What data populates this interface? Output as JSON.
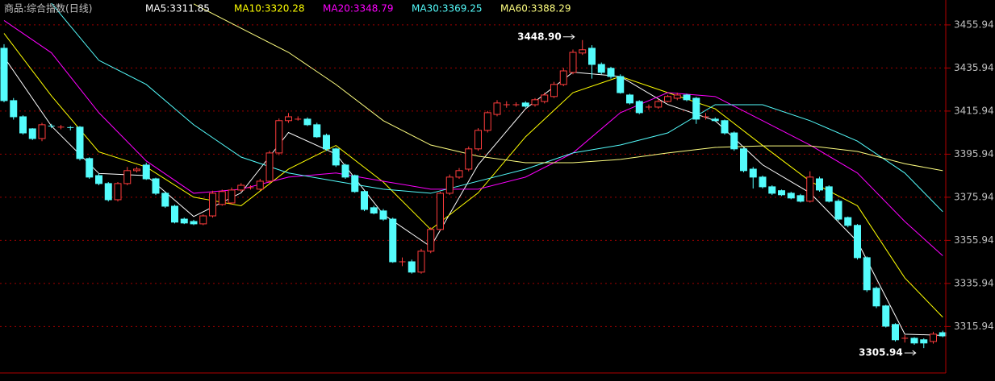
{
  "chart_data": {
    "type": "candlestick",
    "title": "商品:综合指数(日线)",
    "up_color": "#ff3c3c",
    "down_color": "#54fcfc",
    "ylim": [
      3294.4,
      3467.5
    ],
    "yticks": [
      3315.94,
      3335.94,
      3355.94,
      3375.94,
      3395.94,
      3415.94,
      3435.94,
      3455.94
    ],
    "grid": true,
    "open": [
      3445.1,
      3420.8,
      3413.3,
      3407.7,
      3403.2,
      3409.0,
      3408.5,
      3408.3,
      3408.5,
      3393.9,
      3386.0,
      3382.3,
      3374.8,
      3382.3,
      3388.3,
      3390.9,
      3384.5,
      3377.8,
      3371.8,
      3365.8,
      3364.7,
      3363.6,
      3367.3,
      3372.6,
      3373.3,
      3379.3,
      3380.4,
      3379.7,
      3383.4,
      3396.5,
      3411.5,
      3412.2,
      3412.2,
      3409.6,
      3404.7,
      3398.4,
      3390.9,
      3386.0,
      3378.6,
      3371.1,
      3369.6,
      3365.8,
      3346.0,
      3346.0,
      3341.2,
      3350.9,
      3361.0,
      3377.8,
      3385.3,
      3389.0,
      3398.4,
      3407.0,
      3414.4,
      3418.9,
      3418.9,
      3419.7,
      3418.9,
      3420.4,
      3422.7,
      3428.3,
      3433.9,
      3442.9,
      3445.1,
      3437.6,
      3435.8,
      3432.0,
      3423.4,
      3420.4,
      3417.8,
      3417.8,
      3420.4,
      3421.9,
      3423.4,
      3421.9,
      3413.3,
      3412.2,
      3411.5,
      3405.8,
      3398.4,
      3389.0,
      3385.3,
      3380.8,
      3379.0,
      3377.8,
      3376.7,
      3374.1,
      3384.5,
      3380.8,
      3374.1,
      3366.5,
      3362.9,
      3347.9,
      3333.7,
      3325.5,
      3316.9,
      3310.5,
      3310.5,
      3309.8,
      3309.0,
      3313.1
    ],
    "high": [
      3447,
      3422,
      3414,
      3408,
      3410.5,
      3410,
      3409.5,
      3409,
      3409,
      3394.5,
      3387,
      3383,
      3383,
      3390,
      3390,
      3392,
      3385,
      3378.5,
      3372.5,
      3366.5,
      3365.5,
      3368,
      3379,
      3379.5,
      3380.5,
      3382.5,
      3381.5,
      3384.5,
      3397.5,
      3412.5,
      3415,
      3413.5,
      3413,
      3410.5,
      3405.5,
      3399,
      3391.5,
      3386.5,
      3379,
      3372,
      3370.5,
      3366.5,
      3348,
      3347,
      3352,
      3362,
      3378.5,
      3386.5,
      3389.5,
      3399.5,
      3408,
      3416,
      3421,
      3420.5,
      3420,
      3420.5,
      3422,
      3424.5,
      3429.5,
      3436,
      3444.5,
      3448.9,
      3446.5,
      3438.5,
      3436.5,
      3433,
      3424,
      3421,
      3419,
      3421.5,
      3423.5,
      3424.5,
      3424,
      3422.5,
      3415,
      3413,
      3412,
      3406.5,
      3399,
      3390,
      3386,
      3381.5,
      3379.5,
      3378.5,
      3377.5,
      3388,
      3385.5,
      3381.5,
      3375,
      3367,
      3363.5,
      3348.5,
      3334.5,
      3326,
      3317.5,
      3312,
      3311,
      3310.5,
      3313.5,
      3314
    ],
    "low": [
      3420,
      3412,
      3405,
      3402.5,
      3402,
      3408,
      3407.5,
      3407,
      3393,
      3384.5,
      3381.5,
      3374,
      3374,
      3381.5,
      3387.5,
      3384,
      3377,
      3371,
      3363.8,
      3363.5,
      3363,
      3363,
      3366.5,
      3372,
      3372.5,
      3378.5,
      3379.5,
      3379,
      3382.5,
      3395.5,
      3410.5,
      3411.5,
      3409,
      3403.5,
      3397.5,
      3390,
      3384.5,
      3378,
      3369.5,
      3368,
      3365,
      3345.5,
      3344,
      3340.5,
      3340.5,
      3350,
      3360.5,
      3377,
      3384.5,
      3388,
      3397.5,
      3406,
      3413.5,
      3417.5,
      3418,
      3417.5,
      3418,
      3419.5,
      3422,
      3427.5,
      3433,
      3442,
      3431,
      3433,
      3431,
      3424,
      3419,
      3414.5,
      3416.5,
      3417,
      3420,
      3421,
      3420.5,
      3410,
      3412,
      3411,
      3405,
      3397.5,
      3387.5,
      3380,
      3380,
      3377,
      3376.5,
      3375,
      3373.5,
      3373.5,
      3378.5,
      3373.5,
      3365,
      3362,
      3347,
      3332,
      3324.5,
      3315.5,
      3309,
      3308.5,
      3307.5,
      3305.94,
      3308,
      3311
    ],
    "close": [
      3420.8,
      3413.3,
      3405.8,
      3403.2,
      3409.6,
      3408.8,
      3408.5,
      3408.1,
      3393.9,
      3385.3,
      3382.3,
      3374.8,
      3382.3,
      3388.3,
      3389.0,
      3384.5,
      3377.8,
      3371.8,
      3364.4,
      3364.0,
      3363.6,
      3367.3,
      3377.8,
      3378.6,
      3379.3,
      3381.5,
      3380.4,
      3383.4,
      3396.5,
      3411.5,
      3413.3,
      3412.2,
      3409.6,
      3404.0,
      3398.4,
      3390.9,
      3385.3,
      3378.6,
      3370.3,
      3368.6,
      3365.8,
      3346.0,
      3346.0,
      3341.2,
      3350.9,
      3361.0,
      3377.8,
      3385.3,
      3388.3,
      3398.4,
      3407.0,
      3415.2,
      3419.7,
      3418.9,
      3418.9,
      3418.2,
      3421.2,
      3423.4,
      3428.3,
      3434.6,
      3443.2,
      3444.4,
      3437.6,
      3433.9,
      3432.0,
      3424.5,
      3419.7,
      3415.2,
      3417.8,
      3420.4,
      3422.7,
      3423.4,
      3421.2,
      3412.2,
      3413.3,
      3411.5,
      3405.8,
      3398.4,
      3388.3,
      3385.3,
      3380.8,
      3377.8,
      3377.1,
      3375.6,
      3374.1,
      3385.3,
      3379.3,
      3374.1,
      3365.8,
      3362.9,
      3347.9,
      3333.0,
      3325.5,
      3316.1,
      3309.8,
      3310.5,
      3308.3,
      3308.3,
      3312.4,
      3311.6
    ],
    "ma_x": [
      0,
      5,
      10,
      15,
      20,
      25,
      30,
      35,
      40,
      45,
      50,
      55,
      60,
      65,
      70,
      75,
      80,
      85,
      90,
      95,
      99
    ],
    "series": [
      {
        "name": "MA5:3311.85",
        "color": "#ffffff",
        "values": [
          3441,
          3409,
          3387,
          3386,
          3367,
          3378,
          3406,
          3396,
          3368,
          3353,
          3391,
          3417,
          3434,
          3432,
          3419,
          3411.5,
          3391,
          3378,
          3355.4,
          3312.4,
          3311.85
        ]
      },
      {
        "name": "MA10:3320.28",
        "color": "#ffff00",
        "values": [
          3452,
          3423,
          3397,
          3390,
          3376,
          3372,
          3389,
          3400,
          3383,
          3361,
          3378,
          3404,
          3424.5,
          3432,
          3424.5,
          3417,
          3400,
          3383.4,
          3372,
          3338.5,
          3320.28
        ]
      },
      {
        "name": "MA20:3348.79",
        "color": "#ff00ff",
        "values": [
          3458,
          3443,
          3415.2,
          3392.8,
          3377.8,
          3379.7,
          3385.3,
          3387.2,
          3383.4,
          3379.7,
          3379.7,
          3385.3,
          3396.5,
          3415.2,
          3424.5,
          3422.7,
          3411.5,
          3400.2,
          3387.2,
          3364.7,
          3348.79
        ]
      },
      {
        "name": "MA30:3369.25",
        "color": "#54fcfc",
        "values": [
          null,
          3466,
          3439.5,
          3428.3,
          3409.6,
          3394.6,
          3387.2,
          3383.4,
          3379.7,
          3377.8,
          3383.4,
          3389.0,
          3396.5,
          3400.2,
          3405.8,
          3418.9,
          3418.9,
          3411.5,
          3402,
          3387.2,
          3369.25
        ]
      },
      {
        "name": "MA60:3388.29",
        "color": "#ffff80",
        "values": [
          null,
          null,
          null,
          null,
          3465.7,
          3454.4,
          3443.2,
          3428.3,
          3411.5,
          3400.2,
          3395,
          3392,
          3392,
          3393.5,
          3396.5,
          3399.1,
          3399.8,
          3399.8,
          3397.2,
          3391.5,
          3388.29
        ]
      }
    ],
    "annotations": [
      {
        "label": "3448.90",
        "value": 3448.9
      },
      {
        "label": "3305.94",
        "value": 3305.94
      }
    ]
  }
}
